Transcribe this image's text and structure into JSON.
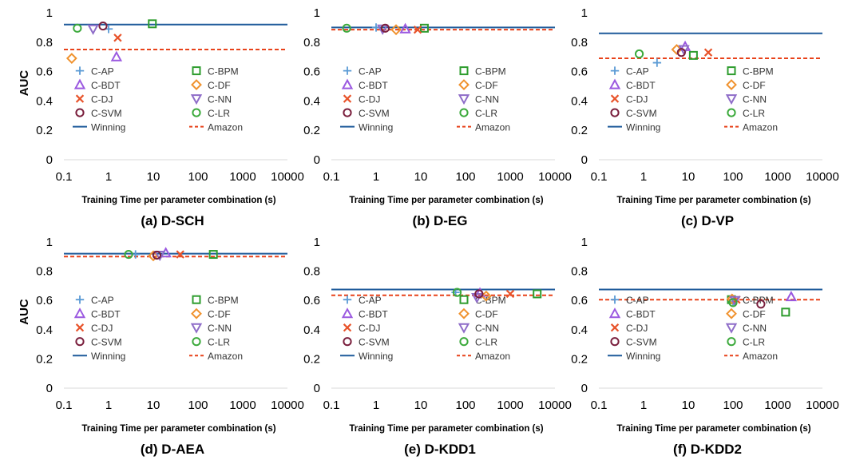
{
  "colors": {
    "C-AP": "#5b9bd5",
    "C-BPM": "#2e9c2e",
    "C-BDT": "#9b59e0",
    "C-DF": "#f0922e",
    "C-DJ": "#e8532a",
    "C-NN": "#8e6cc8",
    "C-SVM": "#7a1f3d",
    "C-LR": "#3caa3c",
    "Winning": "#1f5b9b",
    "Amazon": "#e8421a"
  },
  "legend": [
    {
      "key": "C-AP",
      "label": "C-AP",
      "marker": "plus"
    },
    {
      "key": "C-BPM",
      "label": "C-BPM",
      "marker": "square"
    },
    {
      "key": "C-BDT",
      "label": "C-BDT",
      "marker": "triangle-up"
    },
    {
      "key": "C-DF",
      "label": "C-DF",
      "marker": "diamond"
    },
    {
      "key": "C-DJ",
      "label": "C-DJ",
      "marker": "x"
    },
    {
      "key": "C-NN",
      "label": "C-NN",
      "marker": "triangle-down"
    },
    {
      "key": "C-SVM",
      "label": "C-SVM",
      "marker": "circle"
    },
    {
      "key": "C-LR",
      "label": "C-LR",
      "marker": "circle"
    },
    {
      "key": "Winning",
      "label": "Winning",
      "marker": "solid-line"
    },
    {
      "key": "Amazon",
      "label": "Amazon",
      "marker": "dashed-line"
    }
  ],
  "chart_data": [
    {
      "type": "scatter",
      "caption": "(a) D-SCH",
      "xlabel": "Training Time per parameter combination (s)",
      "ylabel": "AUC",
      "xscale": "log",
      "xlim": [
        0.1,
        10000
      ],
      "ylim": [
        0,
        1
      ],
      "legend_position": "left",
      "xticks": [
        "0.1",
        "1",
        "10",
        "100",
        "1000",
        "10000"
      ],
      "yticks": [
        "0",
        "0.2",
        "0.4",
        "0.6",
        "0.8",
        "1"
      ],
      "winning": 0.92,
      "amazon": 0.75,
      "points": [
        {
          "series": "C-AP",
          "x": 1.0,
          "y": 0.89
        },
        {
          "series": "C-BPM",
          "x": 9.5,
          "y": 0.925
        },
        {
          "series": "C-BDT",
          "x": 1.5,
          "y": 0.7
        },
        {
          "series": "C-DF",
          "x": 0.15,
          "y": 0.69
        },
        {
          "series": "C-DJ",
          "x": 1.6,
          "y": 0.83
        },
        {
          "series": "C-NN",
          "x": 0.45,
          "y": 0.89
        },
        {
          "series": "C-SVM",
          "x": 0.75,
          "y": 0.91
        },
        {
          "series": "C-LR",
          "x": 0.2,
          "y": 0.895
        }
      ]
    },
    {
      "type": "scatter",
      "caption": "(b) D-EG",
      "xlabel": "Training Time per parameter combination (s)",
      "ylabel": "",
      "xscale": "log",
      "xlim": [
        0.1,
        10000
      ],
      "ylim": [
        0,
        1
      ],
      "legend_position": "left",
      "xticks": [
        "0.1",
        "1",
        "10",
        "100",
        "1000",
        "10000"
      ],
      "yticks": [
        "0",
        "0.2",
        "0.4",
        "0.6",
        "0.8",
        "1"
      ],
      "winning": 0.9,
      "amazon": 0.885,
      "points": [
        {
          "series": "C-AP",
          "x": 1.0,
          "y": 0.9
        },
        {
          "series": "C-BPM",
          "x": 12,
          "y": 0.895
        },
        {
          "series": "C-BDT",
          "x": 4.5,
          "y": 0.89
        },
        {
          "series": "C-DF",
          "x": 2.8,
          "y": 0.885
        },
        {
          "series": "C-DJ",
          "x": 8.5,
          "y": 0.885
        },
        {
          "series": "C-NN",
          "x": 1.4,
          "y": 0.89
        },
        {
          "series": "C-SVM",
          "x": 1.6,
          "y": 0.895
        },
        {
          "series": "C-LR",
          "x": 0.22,
          "y": 0.895
        }
      ]
    },
    {
      "type": "scatter",
      "caption": "(c) D-VP",
      "xlabel": "Training Time per parameter combination (s)",
      "ylabel": "",
      "xscale": "log",
      "xlim": [
        0.1,
        10000
      ],
      "ylim": [
        0,
        1
      ],
      "legend_position": "left",
      "xticks": [
        "0.1",
        "1",
        "10",
        "100",
        "1000",
        "10000"
      ],
      "yticks": [
        "0",
        "0.2",
        "0.4",
        "0.6",
        "0.8",
        "1"
      ],
      "winning": 0.86,
      "amazon": 0.69,
      "points": [
        {
          "series": "C-AP",
          "x": 2.0,
          "y": 0.66
        },
        {
          "series": "C-BPM",
          "x": 13,
          "y": 0.71
        },
        {
          "series": "C-BDT",
          "x": 8.5,
          "y": 0.77
        },
        {
          "series": "C-DF",
          "x": 5.5,
          "y": 0.75
        },
        {
          "series": "C-DJ",
          "x": 28,
          "y": 0.73
        },
        {
          "series": "C-NN",
          "x": 8.0,
          "y": 0.75
        },
        {
          "series": "C-SVM",
          "x": 7.0,
          "y": 0.73
        },
        {
          "series": "C-LR",
          "x": 0.8,
          "y": 0.72
        }
      ]
    },
    {
      "type": "scatter",
      "caption": "(d) D-AEA",
      "xlabel": "Training Time per parameter combination (s)",
      "ylabel": "AUC",
      "xscale": "log",
      "xlim": [
        0.1,
        10000
      ],
      "ylim": [
        0,
        1
      ],
      "legend_position": "left",
      "xticks": [
        "0.1",
        "1",
        "10",
        "100",
        "1000",
        "10000"
      ],
      "yticks": [
        "0",
        "0.2",
        "0.4",
        "0.6",
        "0.8",
        "1"
      ],
      "winning": 0.92,
      "amazon": 0.9,
      "points": [
        {
          "series": "C-AP",
          "x": 4.0,
          "y": 0.915
        },
        {
          "series": "C-BPM",
          "x": 220,
          "y": 0.915
        },
        {
          "series": "C-BDT",
          "x": 19,
          "y": 0.925
        },
        {
          "series": "C-DF",
          "x": 10,
          "y": 0.905
        },
        {
          "series": "C-DJ",
          "x": 40,
          "y": 0.915
        },
        {
          "series": "C-NN",
          "x": 14,
          "y": 0.91
        },
        {
          "series": "C-SVM",
          "x": 12,
          "y": 0.91
        },
        {
          "series": "C-LR",
          "x": 2.8,
          "y": 0.915
        }
      ]
    },
    {
      "type": "scatter",
      "caption": "(e) D-KDD1",
      "xlabel": "Training Time per parameter combination (s)",
      "ylabel": "",
      "xscale": "log",
      "xlim": [
        0.1,
        10000
      ],
      "ylim": [
        0,
        1
      ],
      "legend_position": "left",
      "xticks": [
        "0.1",
        "1",
        "10",
        "100",
        "1000",
        "10000"
      ],
      "yticks": [
        "0",
        "0.2",
        "0.4",
        "0.6",
        "0.8",
        "1"
      ],
      "winning": 0.675,
      "amazon": 0.635,
      "points": [
        {
          "series": "C-AP",
          "x": 60,
          "y": 0.655
        },
        {
          "series": "C-BPM",
          "x": 4000,
          "y": 0.645
        },
        {
          "series": "C-BDT",
          "x": 210,
          "y": 0.65
        },
        {
          "series": "C-DF",
          "x": 290,
          "y": 0.63
        },
        {
          "series": "C-DJ",
          "x": 1000,
          "y": 0.645
        },
        {
          "series": "C-NN",
          "x": 180,
          "y": 0.62
        },
        {
          "series": "C-SVM",
          "x": 200,
          "y": 0.645
        },
        {
          "series": "C-LR",
          "x": 65,
          "y": 0.655
        }
      ]
    },
    {
      "type": "scatter",
      "caption": "(f) D-KDD2",
      "xlabel": "Training Time per parameter combination (s)",
      "ylabel": "",
      "xscale": "log",
      "xlim": [
        0.1,
        10000
      ],
      "ylim": [
        0,
        1
      ],
      "legend_position": "left",
      "xticks": [
        "0.1",
        "1",
        "10",
        "100",
        "1000",
        "10000"
      ],
      "yticks": [
        "0",
        "0.2",
        "0.4",
        "0.6",
        "0.8",
        "1"
      ],
      "winning": 0.675,
      "amazon": 0.605,
      "points": [
        {
          "series": "C-AP",
          "x": 100,
          "y": 0.59
        },
        {
          "series": "C-BPM",
          "x": 1500,
          "y": 0.52
        },
        {
          "series": "C-BDT",
          "x": 2000,
          "y": 0.625
        },
        {
          "series": "C-DF",
          "x": 95,
          "y": 0.61
        },
        {
          "series": "C-DJ",
          "x": 120,
          "y": 0.605
        },
        {
          "series": "C-NN",
          "x": 110,
          "y": 0.6
        },
        {
          "series": "C-SVM",
          "x": 420,
          "y": 0.575
        },
        {
          "series": "C-LR",
          "x": 100,
          "y": 0.585
        }
      ]
    }
  ]
}
